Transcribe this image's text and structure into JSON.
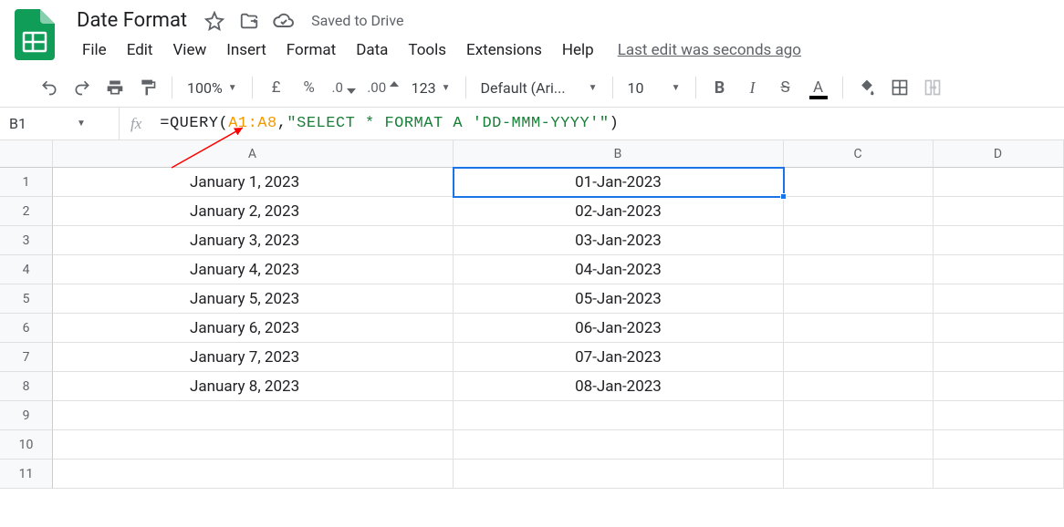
{
  "doc": {
    "title": "Date Format",
    "saved_label": "Saved to Drive",
    "last_edit": "Last edit was seconds ago"
  },
  "menus": [
    "File",
    "Edit",
    "View",
    "Insert",
    "Format",
    "Data",
    "Tools",
    "Extensions",
    "Help"
  ],
  "toolbar": {
    "zoom": "100%",
    "currency": "£",
    "percent": "%",
    "dec_less": ".0",
    "dec_more": ".00",
    "more_fmt": "123",
    "font": "Default (Ari...",
    "font_size": "10"
  },
  "namebox": "B1",
  "formula": {
    "prefix": "=QUERY(",
    "range": "A1:A8",
    "comma": ",",
    "query_string": "\"SELECT * FORMAT A 'DD-MMM-YYYY'\"",
    "suffix": ")"
  },
  "grid": {
    "col_widths": {
      "A": 439,
      "B": 362,
      "C": 164,
      "D": 143
    },
    "columns": [
      "A",
      "B",
      "C",
      "D"
    ],
    "row_count": 11,
    "selected_cell": "B1",
    "data": {
      "A": [
        "January 1, 2023",
        "January 2, 2023",
        "January 3, 2023",
        "January 4, 2023",
        "January 5, 2023",
        "January 6, 2023",
        "January 7, 2023",
        "January 8, 2023"
      ],
      "B": [
        "01-Jan-2023",
        "02-Jan-2023",
        "03-Jan-2023",
        "04-Jan-2023",
        "05-Jan-2023",
        "06-Jan-2023",
        "07-Jan-2023",
        "08-Jan-2023"
      ]
    }
  },
  "colors": {
    "brand_green": "#0f9d58",
    "selection_blue": "#1a73e8",
    "range_orange": "#f29900",
    "string_green": "#188038",
    "arrow_red": "#ff0000"
  }
}
